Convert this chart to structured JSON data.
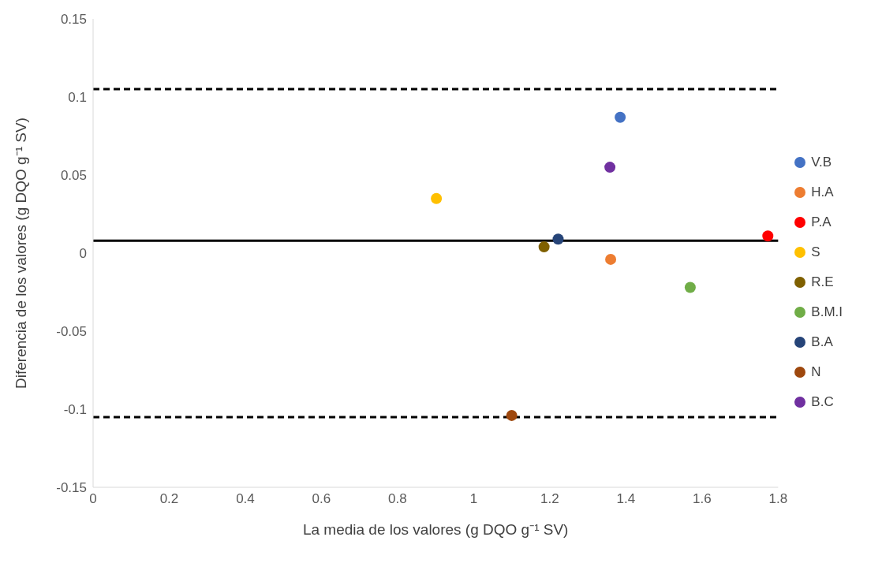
{
  "chart_data": {
    "type": "scatter",
    "xlabel": "La media de los valores (g DQO g⁻¹  SV)",
    "ylabel": "Diferencia de los valores (g DQO g⁻¹  SV)",
    "xlim": [
      0,
      1.8
    ],
    "xticks": [
      0,
      0.2,
      0.4,
      0.6,
      0.8,
      1,
      1.2,
      1.4,
      1.6,
      1.8
    ],
    "ylim": [
      -0.15,
      0.15
    ],
    "yticks": [
      -0.15,
      -0.1,
      -0.05,
      0,
      0.05,
      0.1,
      0.15
    ],
    "grid": false,
    "legend": "right",
    "marker": "circle",
    "series": [
      {
        "name": "V.B",
        "color": "#4472c4",
        "x": [
          1.385
        ],
        "values": [
          0.087
        ]
      },
      {
        "name": "H.A",
        "color": "#ed7d31",
        "x": [
          1.36
        ],
        "values": [
          -0.004
        ]
      },
      {
        "name": "P.A",
        "color": "#ff0000",
        "x": [
          1.773
        ],
        "values": [
          0.011
        ]
      },
      {
        "name": "S",
        "color": "#ffc000",
        "x": [
          0.902
        ],
        "values": [
          0.035
        ]
      },
      {
        "name": "R.E",
        "color": "#7f6000",
        "x": [
          1.185
        ],
        "values": [
          0.004
        ]
      },
      {
        "name": "B.M.I",
        "color": "#70ad47",
        "x": [
          1.569
        ],
        "values": [
          -0.022
        ]
      },
      {
        "name": "B.A",
        "color": "#264478",
        "x": [
          1.222
        ],
        "values": [
          0.009
        ]
      },
      {
        "name": "N",
        "color": "#9e480e",
        "x": [
          1.1
        ],
        "values": [
          -0.104
        ]
      },
      {
        "name": "B.C",
        "color": "#7030a0",
        "x": [
          1.358
        ],
        "values": [
          0.055
        ]
      }
    ],
    "ref_lines": [
      {
        "axis": "y",
        "value": 0.008,
        "color": "#000000",
        "line_style": "solid"
      },
      {
        "axis": "y",
        "value": 0.105,
        "color": "#000000",
        "line_style": "dashed"
      },
      {
        "axis": "y",
        "value": -0.105,
        "color": "#000000",
        "line_style": "dashed"
      }
    ]
  }
}
